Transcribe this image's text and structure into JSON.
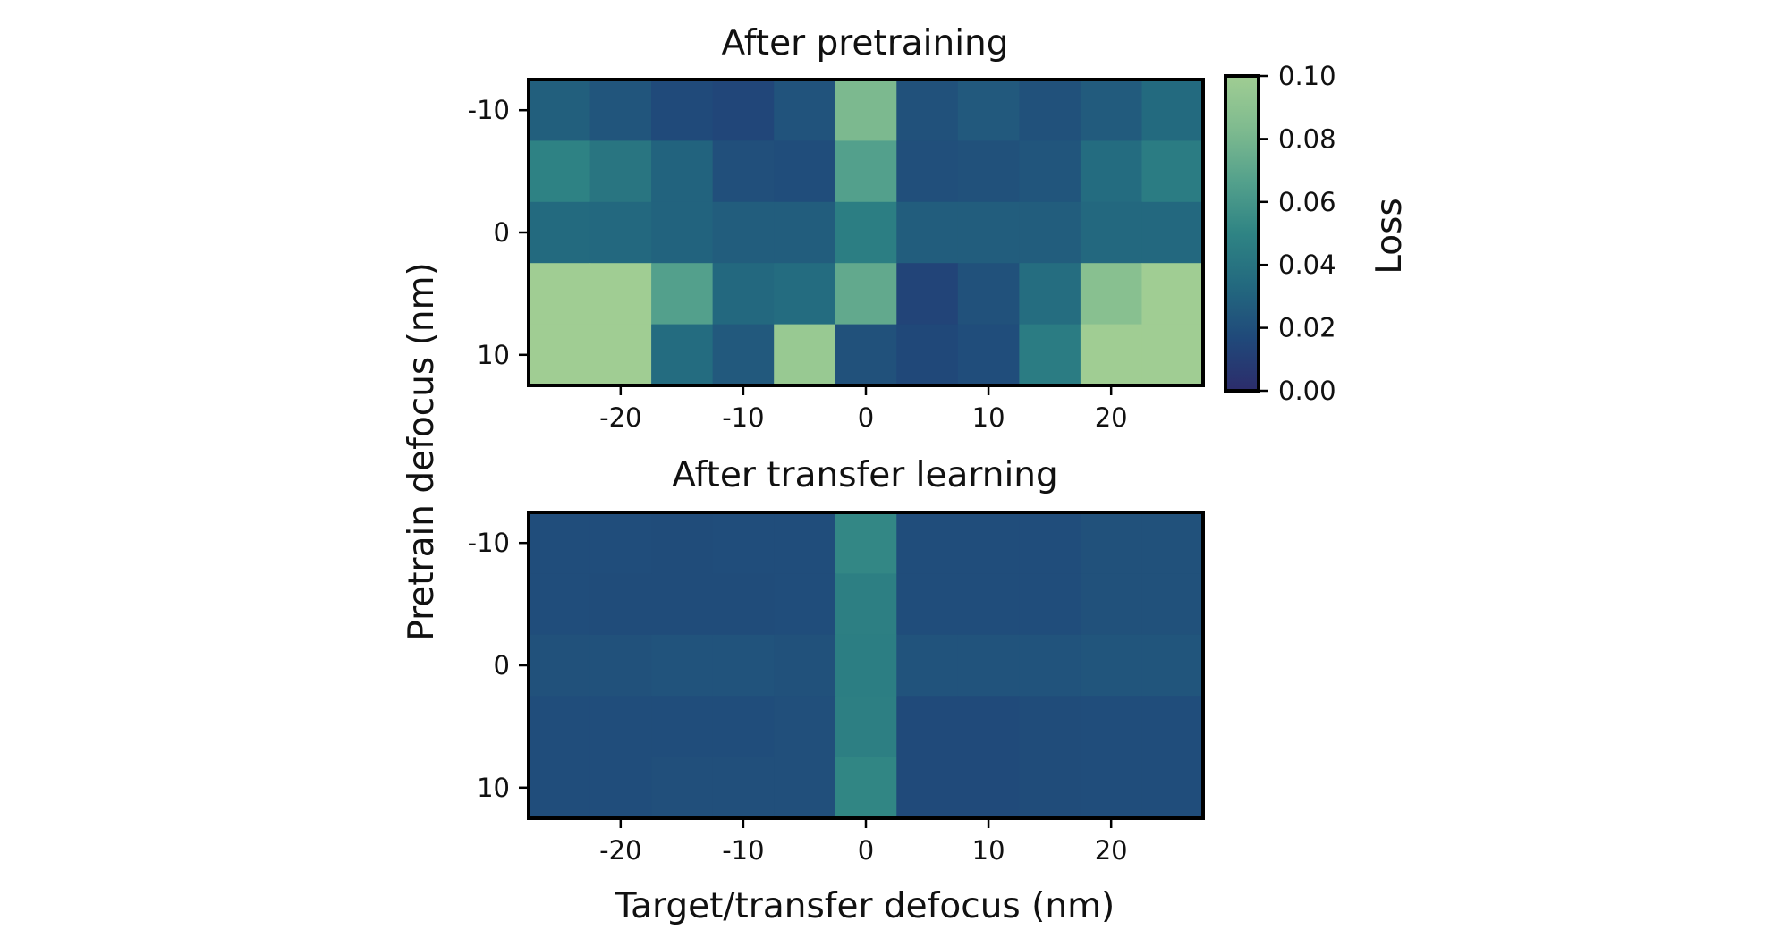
{
  "chart_data": [
    {
      "type": "heatmap",
      "title": "After pretraining",
      "x": [
        -25,
        -20,
        -15,
        -10,
        -5,
        0,
        5,
        10,
        15,
        20,
        25
      ],
      "y": [
        -10,
        -5,
        0,
        5,
        10
      ],
      "xticks": [
        -20,
        -10,
        0,
        10,
        20
      ],
      "yticks": [
        -10,
        0,
        10
      ],
      "xlabel": "",
      "values": [
        [
          0.028,
          0.023,
          0.017,
          0.015,
          0.022,
          0.082,
          0.021,
          0.025,
          0.021,
          0.026,
          0.034
        ],
        [
          0.049,
          0.041,
          0.03,
          0.02,
          0.019,
          0.066,
          0.02,
          0.021,
          0.023,
          0.035,
          0.045
        ],
        [
          0.034,
          0.033,
          0.03,
          0.027,
          0.027,
          0.046,
          0.027,
          0.027,
          0.027,
          0.033,
          0.033
        ],
        [
          0.1,
          0.1,
          0.066,
          0.033,
          0.035,
          0.072,
          0.014,
          0.021,
          0.036,
          0.088,
          0.1
        ],
        [
          0.1,
          0.1,
          0.035,
          0.025,
          0.096,
          0.021,
          0.016,
          0.019,
          0.045,
          0.1,
          0.1
        ]
      ]
    },
    {
      "type": "heatmap",
      "title": "After transfer learning",
      "x": [
        -25,
        -20,
        -15,
        -10,
        -5,
        0,
        5,
        10,
        15,
        20,
        25
      ],
      "y": [
        -10,
        -5,
        0,
        5,
        10
      ],
      "xticks": [
        -20,
        -10,
        0,
        10,
        20
      ],
      "yticks": [
        -10,
        0,
        10
      ],
      "xlabel": "Target/transfer defocus (nm)",
      "values": [
        [
          0.019,
          0.019,
          0.018,
          0.019,
          0.019,
          0.052,
          0.019,
          0.019,
          0.019,
          0.021,
          0.021
        ],
        [
          0.019,
          0.018,
          0.018,
          0.018,
          0.019,
          0.047,
          0.019,
          0.019,
          0.019,
          0.021,
          0.021
        ],
        [
          0.021,
          0.021,
          0.022,
          0.022,
          0.021,
          0.046,
          0.022,
          0.022,
          0.022,
          0.023,
          0.023
        ],
        [
          0.019,
          0.019,
          0.019,
          0.019,
          0.02,
          0.047,
          0.017,
          0.017,
          0.018,
          0.019,
          0.019
        ],
        [
          0.019,
          0.019,
          0.02,
          0.02,
          0.02,
          0.051,
          0.017,
          0.017,
          0.018,
          0.019,
          0.019
        ]
      ]
    }
  ],
  "shared_ylabel": "Pretrain defocus (nm)",
  "colorbar": {
    "label": "Loss",
    "range": [
      0.0,
      0.1
    ],
    "ticks": [
      "0.00",
      "0.02",
      "0.04",
      "0.06",
      "0.08",
      "0.10"
    ],
    "colormap": [
      "#2c2c6b",
      "#20497a",
      "#23697f",
      "#2f8484",
      "#54a18c",
      "#7fbb8f",
      "#a0cd93"
    ]
  }
}
